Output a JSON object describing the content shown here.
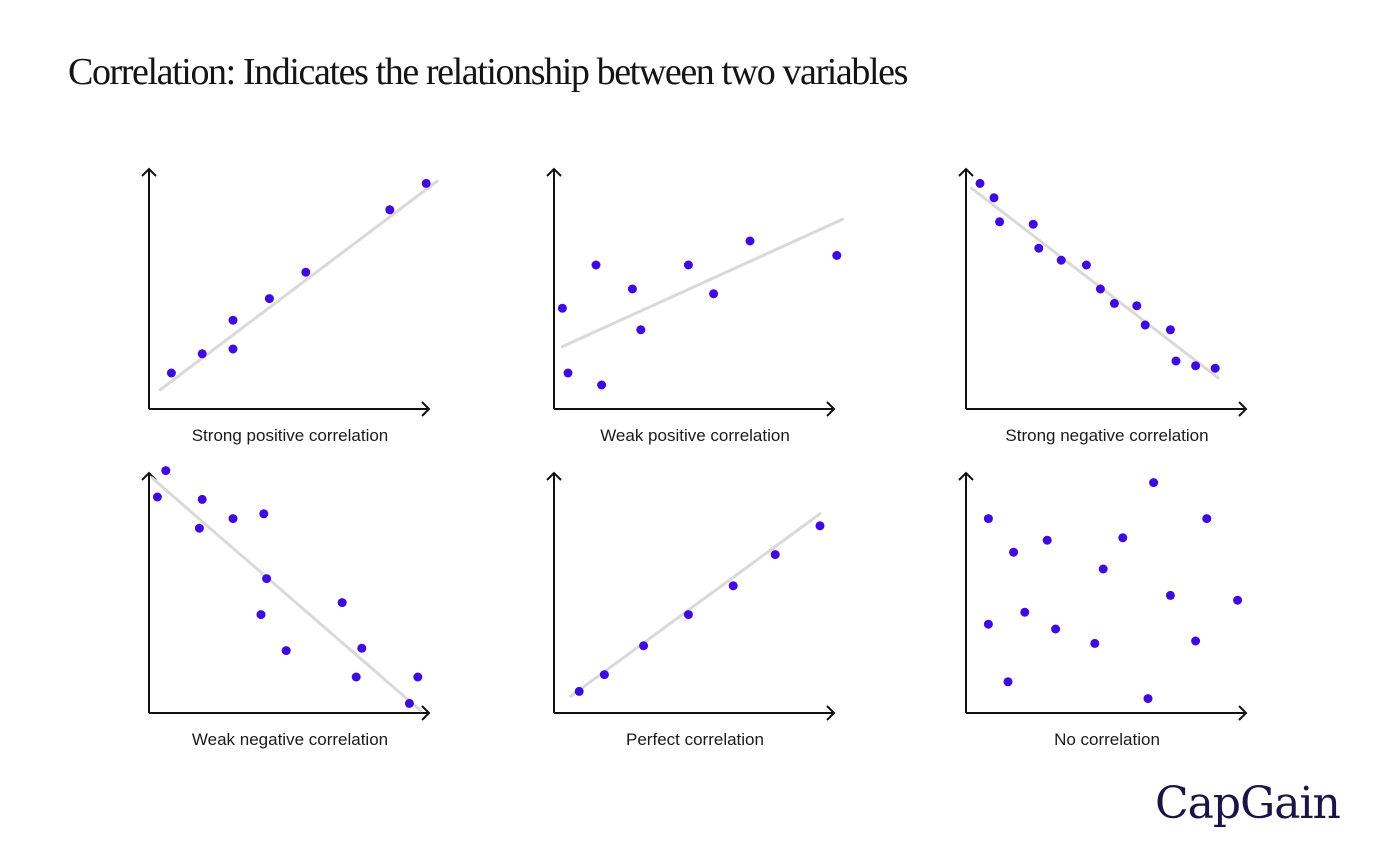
{
  "title": "Correlation: Indicates the relationship between two variables",
  "brand": {
    "logo_text": "CapGain",
    "color": "#1c1447"
  },
  "colors": {
    "point": "#3d0ae0",
    "trend": "#d9d9d9",
    "axis": "#111111"
  },
  "chart_data": [
    {
      "type": "scatter",
      "caption": "Strong positive correlation",
      "xlim": [
        0,
        10
      ],
      "ylim": [
        0,
        10
      ],
      "trend": [
        [
          0.4,
          0.8
        ],
        [
          10.3,
          9.5
        ]
      ],
      "points": [
        [
          0.8,
          1.5
        ],
        [
          1.9,
          2.3
        ],
        [
          3.0,
          2.5
        ],
        [
          3.0,
          3.7
        ],
        [
          4.3,
          4.6
        ],
        [
          5.6,
          5.7
        ],
        [
          8.6,
          8.3
        ],
        [
          9.9,
          9.4
        ]
      ]
    },
    {
      "type": "scatter",
      "caption": "Weak positive correlation",
      "xlim": [
        0,
        10
      ],
      "ylim": [
        0,
        10
      ],
      "trend": [
        [
          0.3,
          2.6
        ],
        [
          10.3,
          7.9
        ]
      ],
      "points": [
        [
          0.3,
          4.2
        ],
        [
          0.5,
          1.5
        ],
        [
          1.5,
          6.0
        ],
        [
          1.7,
          1.0
        ],
        [
          2.8,
          5.0
        ],
        [
          3.1,
          3.3
        ],
        [
          4.8,
          6.0
        ],
        [
          5.7,
          4.8
        ],
        [
          7.0,
          7.0
        ],
        [
          10.1,
          6.4
        ]
      ]
    },
    {
      "type": "scatter",
      "caption": "Strong negative correlation",
      "xlim": [
        0,
        10
      ],
      "ylim": [
        0,
        10
      ],
      "trend": [
        [
          0.2,
          9.2
        ],
        [
          9.0,
          1.3
        ]
      ],
      "points": [
        [
          0.5,
          9.4
        ],
        [
          1.0,
          8.8
        ],
        [
          1.2,
          7.8
        ],
        [
          2.4,
          7.7
        ],
        [
          2.6,
          6.7
        ],
        [
          3.4,
          6.2
        ],
        [
          4.3,
          6.0
        ],
        [
          4.8,
          5.0
        ],
        [
          5.3,
          4.4
        ],
        [
          6.1,
          4.3
        ],
        [
          6.4,
          3.5
        ],
        [
          7.3,
          3.3
        ],
        [
          7.5,
          2.0
        ],
        [
          8.2,
          1.8
        ],
        [
          8.9,
          1.7
        ]
      ]
    },
    {
      "type": "scatter",
      "caption": "Weak negative correlation",
      "xlim": [
        0,
        10
      ],
      "ylim": [
        0,
        10
      ],
      "trend": [
        [
          0.1,
          9.8
        ],
        [
          9.7,
          0.1
        ]
      ],
      "points": [
        [
          0.3,
          9.0
        ],
        [
          0.6,
          10.1
        ],
        [
          1.8,
          7.7
        ],
        [
          1.9,
          8.9
        ],
        [
          3.0,
          8.1
        ],
        [
          4.1,
          8.3
        ],
        [
          4.0,
          4.1
        ],
        [
          4.2,
          5.6
        ],
        [
          4.9,
          2.6
        ],
        [
          6.9,
          4.6
        ],
        [
          7.4,
          1.5
        ],
        [
          7.6,
          2.7
        ],
        [
          9.3,
          0.4
        ],
        [
          9.6,
          1.5
        ]
      ]
    },
    {
      "type": "scatter",
      "caption": "Perfect correlation",
      "xlim": [
        0,
        10
      ],
      "ylim": [
        0,
        10
      ],
      "trend": [
        [
          0.6,
          0.7
        ],
        [
          9.5,
          8.3
        ]
      ],
      "points": [
        [
          0.9,
          0.9
        ],
        [
          1.8,
          1.6
        ],
        [
          3.2,
          2.8
        ],
        [
          4.8,
          4.1
        ],
        [
          6.4,
          5.3
        ],
        [
          7.9,
          6.6
        ],
        [
          9.5,
          7.8
        ]
      ]
    },
    {
      "type": "scatter",
      "caption": "No correlation",
      "xlim": [
        0,
        10
      ],
      "ylim": [
        0,
        10
      ],
      "points": [
        [
          0.8,
          8.1
        ],
        [
          0.8,
          3.7
        ],
        [
          1.5,
          1.3
        ],
        [
          1.7,
          6.7
        ],
        [
          2.1,
          4.2
        ],
        [
          2.9,
          7.2
        ],
        [
          3.2,
          3.5
        ],
        [
          4.6,
          2.9
        ],
        [
          4.9,
          6.0
        ],
        [
          5.6,
          7.3
        ],
        [
          6.5,
          0.6
        ],
        [
          6.7,
          9.6
        ],
        [
          7.3,
          4.9
        ],
        [
          8.2,
          3.0
        ],
        [
          8.6,
          8.1
        ],
        [
          9.7,
          4.7
        ]
      ]
    }
  ]
}
